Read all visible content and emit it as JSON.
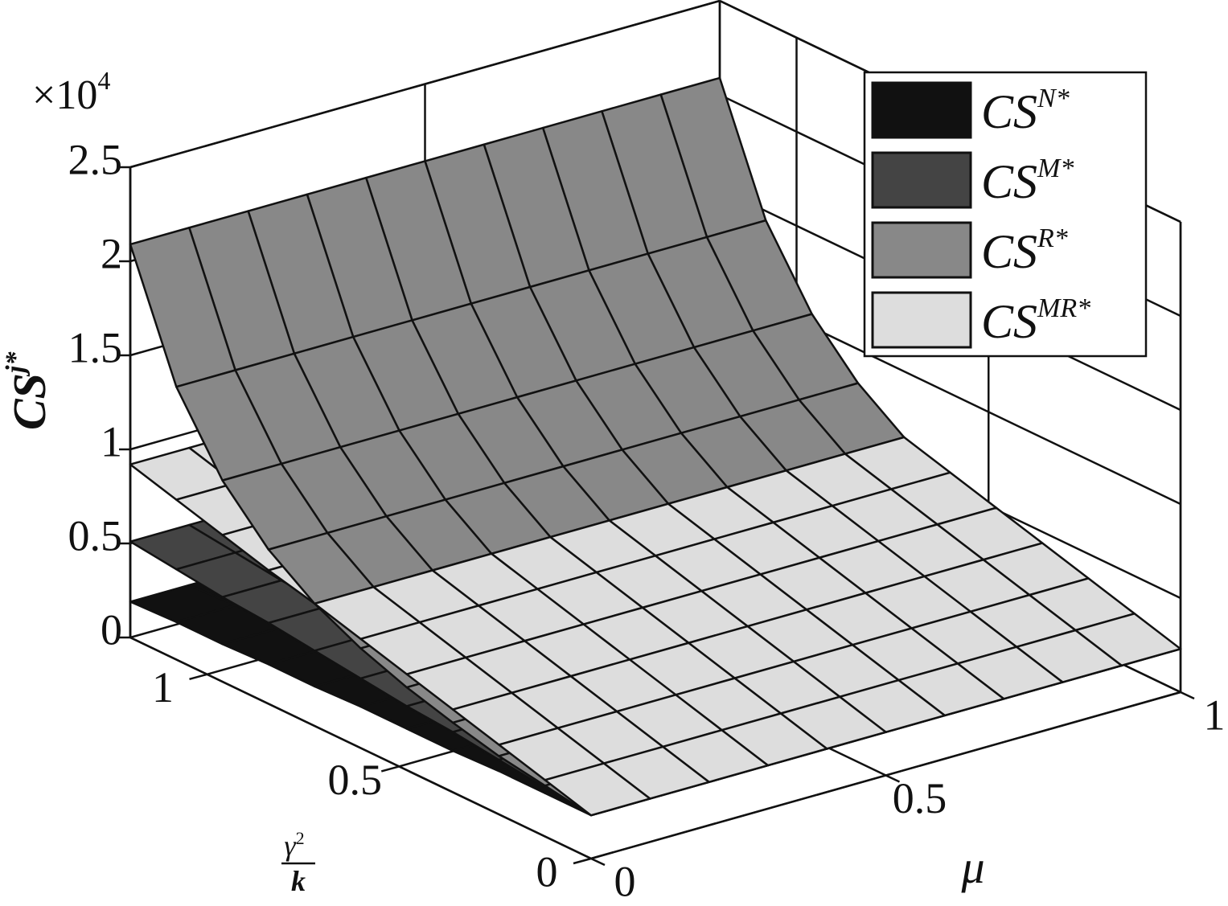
{
  "chart_data": {
    "type": "surface3d",
    "zlabel": {
      "text": "CS",
      "sup": "j*"
    },
    "zmultiplier": {
      "text": "×10",
      "sup": "4"
    },
    "xlabel": "μ",
    "ylabel": {
      "numerator": "γ",
      "numerator_sup": "2",
      "denominator": "k"
    },
    "xlim": [
      0,
      1
    ],
    "xticks": [
      0,
      0.5,
      1
    ],
    "ylim": [
      0,
      1.2
    ],
    "yticks": [
      0,
      0.5,
      1
    ],
    "zlim": [
      0,
      2.5
    ],
    "zticks": [
      0,
      0.5,
      1,
      1.5,
      2,
      2.5
    ],
    "grid": true,
    "legend": "upper right",
    "x": [
      0,
      0.1,
      0.2,
      0.3,
      0.4,
      0.5,
      0.6,
      0.7,
      0.8,
      0.9,
      1
    ],
    "y": [
      0,
      0.12,
      0.24,
      0.36,
      0.48,
      0.6,
      0.72,
      0.84,
      0.96,
      1.08,
      1.2
    ],
    "series": [
      {
        "name": "CS",
        "sup": "N*",
        "color": "#111111",
        "z": [
          [
            0.23,
            0.23,
            0.23,
            0.23,
            0.23,
            0.23,
            0.23,
            0.23,
            0.23,
            0.23,
            0.23
          ],
          [
            0.23,
            0.23,
            0.23,
            0.23,
            0.23,
            0.23,
            0.23,
            0.23,
            0.23,
            0.23,
            0.23
          ],
          [
            0.23,
            0.23,
            0.23,
            0.23,
            0.23,
            0.23,
            0.23,
            0.23,
            0.23,
            0.23,
            0.23
          ],
          [
            0.22,
            0.22,
            0.22,
            0.22,
            0.22,
            0.22,
            0.22,
            0.22,
            0.22,
            0.22,
            0.22
          ],
          [
            0.22,
            0.22,
            0.22,
            0.22,
            0.22,
            0.22,
            0.22,
            0.22,
            0.22,
            0.22,
            0.22
          ],
          [
            0.22,
            0.22,
            0.22,
            0.22,
            0.22,
            0.22,
            0.22,
            0.22,
            0.22,
            0.22,
            0.22
          ],
          [
            0.21,
            0.21,
            0.21,
            0.21,
            0.21,
            0.21,
            0.21,
            0.21,
            0.21,
            0.21,
            0.21
          ],
          [
            0.21,
            0.21,
            0.21,
            0.21,
            0.21,
            0.21,
            0.21,
            0.21,
            0.21,
            0.21,
            0.21
          ],
          [
            0.2,
            0.2,
            0.2,
            0.2,
            0.2,
            0.2,
            0.2,
            0.2,
            0.2,
            0.2,
            0.2
          ],
          [
            0.2,
            0.2,
            0.2,
            0.2,
            0.2,
            0.2,
            0.2,
            0.2,
            0.2,
            0.2,
            0.2
          ],
          [
            0.19,
            0.19,
            0.19,
            0.19,
            0.19,
            0.19,
            0.19,
            0.19,
            0.19,
            0.19,
            0.19
          ]
        ]
      },
      {
        "name": "CS",
        "sup": "M*",
        "color": "#444444",
        "z": [
          [
            0.23,
            0.23,
            0.23,
            0.23,
            0.23,
            0.23,
            0.23,
            0.23,
            0.23,
            0.23,
            0.23
          ],
          [
            0.26,
            0.26,
            0.26,
            0.26,
            0.26,
            0.26,
            0.26,
            0.26,
            0.26,
            0.26,
            0.26
          ],
          [
            0.29,
            0.29,
            0.29,
            0.29,
            0.29,
            0.29,
            0.29,
            0.29,
            0.29,
            0.29,
            0.29
          ],
          [
            0.32,
            0.32,
            0.32,
            0.32,
            0.32,
            0.32,
            0.32,
            0.32,
            0.32,
            0.32,
            0.32
          ],
          [
            0.34,
            0.34,
            0.34,
            0.34,
            0.34,
            0.34,
            0.34,
            0.34,
            0.34,
            0.34,
            0.34
          ],
          [
            0.37,
            0.37,
            0.37,
            0.37,
            0.37,
            0.37,
            0.37,
            0.37,
            0.37,
            0.37,
            0.37
          ],
          [
            0.4,
            0.4,
            0.4,
            0.4,
            0.4,
            0.4,
            0.4,
            0.4,
            0.4,
            0.4,
            0.4
          ],
          [
            0.43,
            0.43,
            0.43,
            0.43,
            0.43,
            0.43,
            0.43,
            0.43,
            0.43,
            0.43,
            0.43
          ],
          [
            0.45,
            0.45,
            0.45,
            0.45,
            0.45,
            0.45,
            0.45,
            0.45,
            0.45,
            0.45,
            0.45
          ],
          [
            0.48,
            0.48,
            0.48,
            0.48,
            0.48,
            0.48,
            0.48,
            0.48,
            0.48,
            0.48,
            0.48
          ],
          [
            0.51,
            0.51,
            0.51,
            0.51,
            0.51,
            0.51,
            0.51,
            0.51,
            0.51,
            0.51,
            0.51
          ]
        ]
      },
      {
        "name": "CS",
        "sup": "R*",
        "color": "#888888",
        "z": [
          [
            0.23,
            0.23,
            0.23,
            0.23,
            0.23,
            0.23,
            0.23,
            0.23,
            0.23,
            0.23,
            0.23
          ],
          [
            0.27,
            0.27,
            0.27,
            0.27,
            0.27,
            0.27,
            0.27,
            0.27,
            0.27,
            0.27,
            0.27
          ],
          [
            0.31,
            0.31,
            0.31,
            0.31,
            0.31,
            0.31,
            0.31,
            0.31,
            0.31,
            0.31,
            0.31
          ],
          [
            0.37,
            0.37,
            0.37,
            0.37,
            0.37,
            0.37,
            0.37,
            0.37,
            0.37,
            0.37,
            0.37
          ],
          [
            0.44,
            0.44,
            0.44,
            0.44,
            0.44,
            0.44,
            0.44,
            0.44,
            0.44,
            0.44,
            0.44
          ],
          [
            0.53,
            0.53,
            0.53,
            0.53,
            0.53,
            0.53,
            0.53,
            0.53,
            0.53,
            0.53,
            0.53
          ],
          [
            0.65,
            0.65,
            0.65,
            0.65,
            0.65,
            0.65,
            0.65,
            0.65,
            0.65,
            0.65,
            0.65
          ],
          [
            0.82,
            0.82,
            0.82,
            0.82,
            0.82,
            0.82,
            0.82,
            0.82,
            0.82,
            0.82,
            0.82
          ],
          [
            1.07,
            1.07,
            1.07,
            1.07,
            1.07,
            1.07,
            1.07,
            1.07,
            1.07,
            1.07,
            1.07
          ],
          [
            1.45,
            1.45,
            1.45,
            1.45,
            1.45,
            1.45,
            1.45,
            1.45,
            1.45,
            1.45,
            1.45
          ],
          [
            2.09,
            2.09,
            2.09,
            2.09,
            2.09,
            2.09,
            2.09,
            2.09,
            2.09,
            2.09,
            2.09
          ]
        ]
      },
      {
        "name": "CS",
        "sup": "MR*",
        "color": "#dddddd",
        "z": [
          [
            0.23,
            0.23,
            0.23,
            0.23,
            0.23,
            0.23,
            0.23,
            0.23,
            0.23,
            0.23,
            0.23
          ],
          [
            0.3,
            0.3,
            0.3,
            0.3,
            0.3,
            0.3,
            0.3,
            0.3,
            0.3,
            0.3,
            0.3
          ],
          [
            0.37,
            0.37,
            0.37,
            0.37,
            0.37,
            0.37,
            0.37,
            0.37,
            0.37,
            0.37,
            0.37
          ],
          [
            0.44,
            0.44,
            0.44,
            0.44,
            0.44,
            0.44,
            0.44,
            0.44,
            0.44,
            0.44,
            0.44
          ],
          [
            0.51,
            0.51,
            0.51,
            0.51,
            0.51,
            0.51,
            0.51,
            0.51,
            0.51,
            0.51,
            0.51
          ],
          [
            0.58,
            0.58,
            0.58,
            0.58,
            0.58,
            0.58,
            0.58,
            0.58,
            0.58,
            0.58,
            0.58
          ],
          [
            0.65,
            0.65,
            0.65,
            0.65,
            0.65,
            0.65,
            0.65,
            0.65,
            0.65,
            0.65,
            0.65
          ],
          [
            0.71,
            0.71,
            0.71,
            0.71,
            0.71,
            0.71,
            0.71,
            0.71,
            0.71,
            0.71,
            0.71
          ],
          [
            0.78,
            0.78,
            0.78,
            0.78,
            0.78,
            0.78,
            0.78,
            0.78,
            0.78,
            0.78,
            0.78
          ],
          [
            0.85,
            0.85,
            0.85,
            0.85,
            0.85,
            0.85,
            0.85,
            0.85,
            0.85,
            0.85,
            0.85
          ],
          [
            0.92,
            0.92,
            0.92,
            0.92,
            0.92,
            0.92,
            0.92,
            0.92,
            0.92,
            0.92,
            0.92
          ]
        ]
      }
    ]
  }
}
